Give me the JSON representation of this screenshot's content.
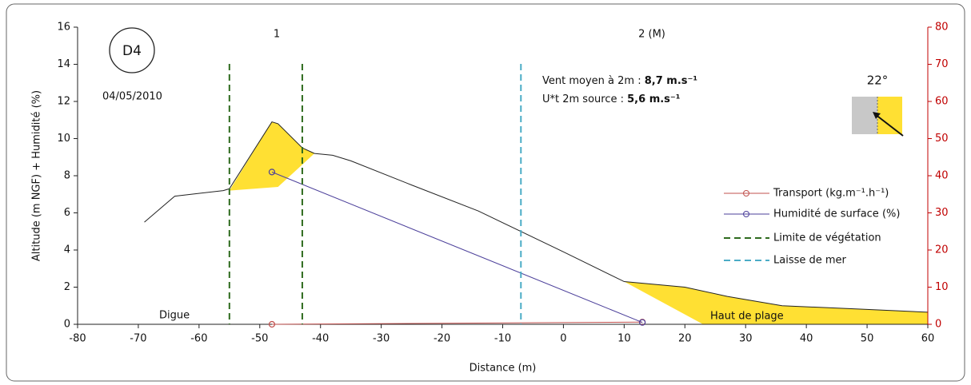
{
  "chart_data": {
    "type": "line",
    "xlabel": "Distance (m)",
    "ylabel": "Altitude (m NGF) + Humidité (%)",
    "xlim": [
      -80,
      60
    ],
    "xticks": [
      -80,
      -70,
      -60,
      -50,
      -40,
      -30,
      -20,
      -10,
      0,
      10,
      20,
      30,
      40,
      50,
      60
    ],
    "ylim": [
      0,
      16
    ],
    "yticks": [
      0,
      2,
      4,
      6,
      8,
      10,
      12,
      14,
      16
    ],
    "y2lim": [
      0,
      80
    ],
    "y2ticks": [
      0,
      10,
      20,
      30,
      40,
      50,
      60,
      70,
      80
    ],
    "y2color": "#c00000",
    "profile": {
      "color": "#222222",
      "x": [
        -69,
        -64,
        -56,
        -55,
        -48,
        -47,
        -43,
        -41,
        -38,
        -35,
        -25,
        -14,
        0,
        10,
        20,
        27,
        36,
        50,
        60
      ],
      "values": [
        5.5,
        6.9,
        7.2,
        7.3,
        10.9,
        10.8,
        9.5,
        9.2,
        9.1,
        8.8,
        7.5,
        6.1,
        3.9,
        2.3,
        2.0,
        1.5,
        1.0,
        0.8,
        0.65
      ]
    },
    "areas": [
      {
        "color": "#ffe033",
        "x": [
          -55,
          -48,
          -47,
          -43,
          -41,
          -47,
          -55
        ],
        "values": [
          7.2,
          10.9,
          10.8,
          9.5,
          9.2,
          7.4,
          7.2
        ]
      },
      {
        "color": "#ffe033",
        "x": [
          10,
          20,
          27,
          36,
          50,
          60,
          60,
          23
        ],
        "values": [
          2.3,
          2.0,
          1.5,
          1.0,
          0.8,
          0.65,
          0,
          0
        ]
      }
    ],
    "series": [
      {
        "name": "Transport (kg.m⁻¹.h⁻¹)",
        "color": "#c0504d",
        "axis": "y2",
        "x": [
          -48,
          13
        ],
        "values": [
          0,
          0.6
        ]
      },
      {
        "name": "Humidité de surface (%)",
        "color": "#4b3f9a",
        "x": [
          -48,
          13
        ],
        "values": [
          8.2,
          0.1
        ]
      },
      {
        "name": "Limite de végétation",
        "color": "#2e6b1e",
        "style": "vline",
        "x": [
          -55,
          -43
        ]
      },
      {
        "name": "Laisse de mer",
        "color": "#4bacc6",
        "style": "vline",
        "x": [
          -7
        ]
      }
    ],
    "annotations": {
      "station": "D4",
      "date": "04/05/2010",
      "zone1": "1",
      "zone2": "2 (M)",
      "wind_label": "Vent moyen à 2m : ",
      "wind_value": "8,7 m.s⁻¹",
      "threshold_label": "U*t 2m source : ",
      "threshold_value": "5,6 m.s⁻¹",
      "angle": "22°",
      "digue": "Digue",
      "beach": "Haut de plage"
    }
  }
}
